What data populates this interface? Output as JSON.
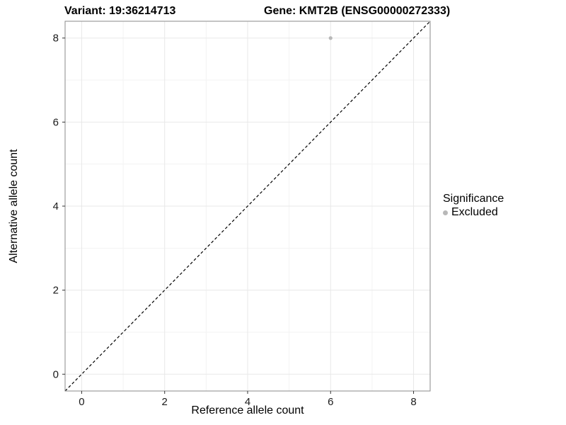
{
  "titles": {
    "variant": "Variant: 19:36214713",
    "gene": "Gene: KMT2B (ENSG00000272333)"
  },
  "chart_data": {
    "type": "scatter",
    "title": "Variant: 19:36214713  |  Gene: KMT2B (ENSG00000272333)",
    "xlabel": "Reference allele count",
    "ylabel": "Alternative allele count",
    "xlim": [
      -0.4,
      8.4
    ],
    "ylim": [
      -0.4,
      8.4
    ],
    "xticks": [
      0,
      2,
      4,
      6,
      8
    ],
    "yticks": [
      0,
      2,
      4,
      6,
      8
    ],
    "xminor": [
      1,
      3,
      5,
      7
    ],
    "yminor": [
      1,
      3,
      5,
      7
    ],
    "grid": true,
    "points": [
      {
        "x": 6,
        "y": 8,
        "series": "Excluded"
      }
    ],
    "identity_line": {
      "style": "dashed",
      "from": -0.4,
      "to": 8.4,
      "color": "#000000"
    },
    "point_color": "#b8b8b8",
    "colors": {
      "grid_major": "#e8e8e8",
      "grid_minor": "#f3f3f3",
      "panel_border": "#8a8a8a",
      "tick": "#333333",
      "tick_label": "#1a1a1a"
    },
    "legend": {
      "title": "Significance",
      "position": "right",
      "items": [
        {
          "label": "Excluded",
          "color": "#b8b8b8"
        }
      ]
    }
  }
}
